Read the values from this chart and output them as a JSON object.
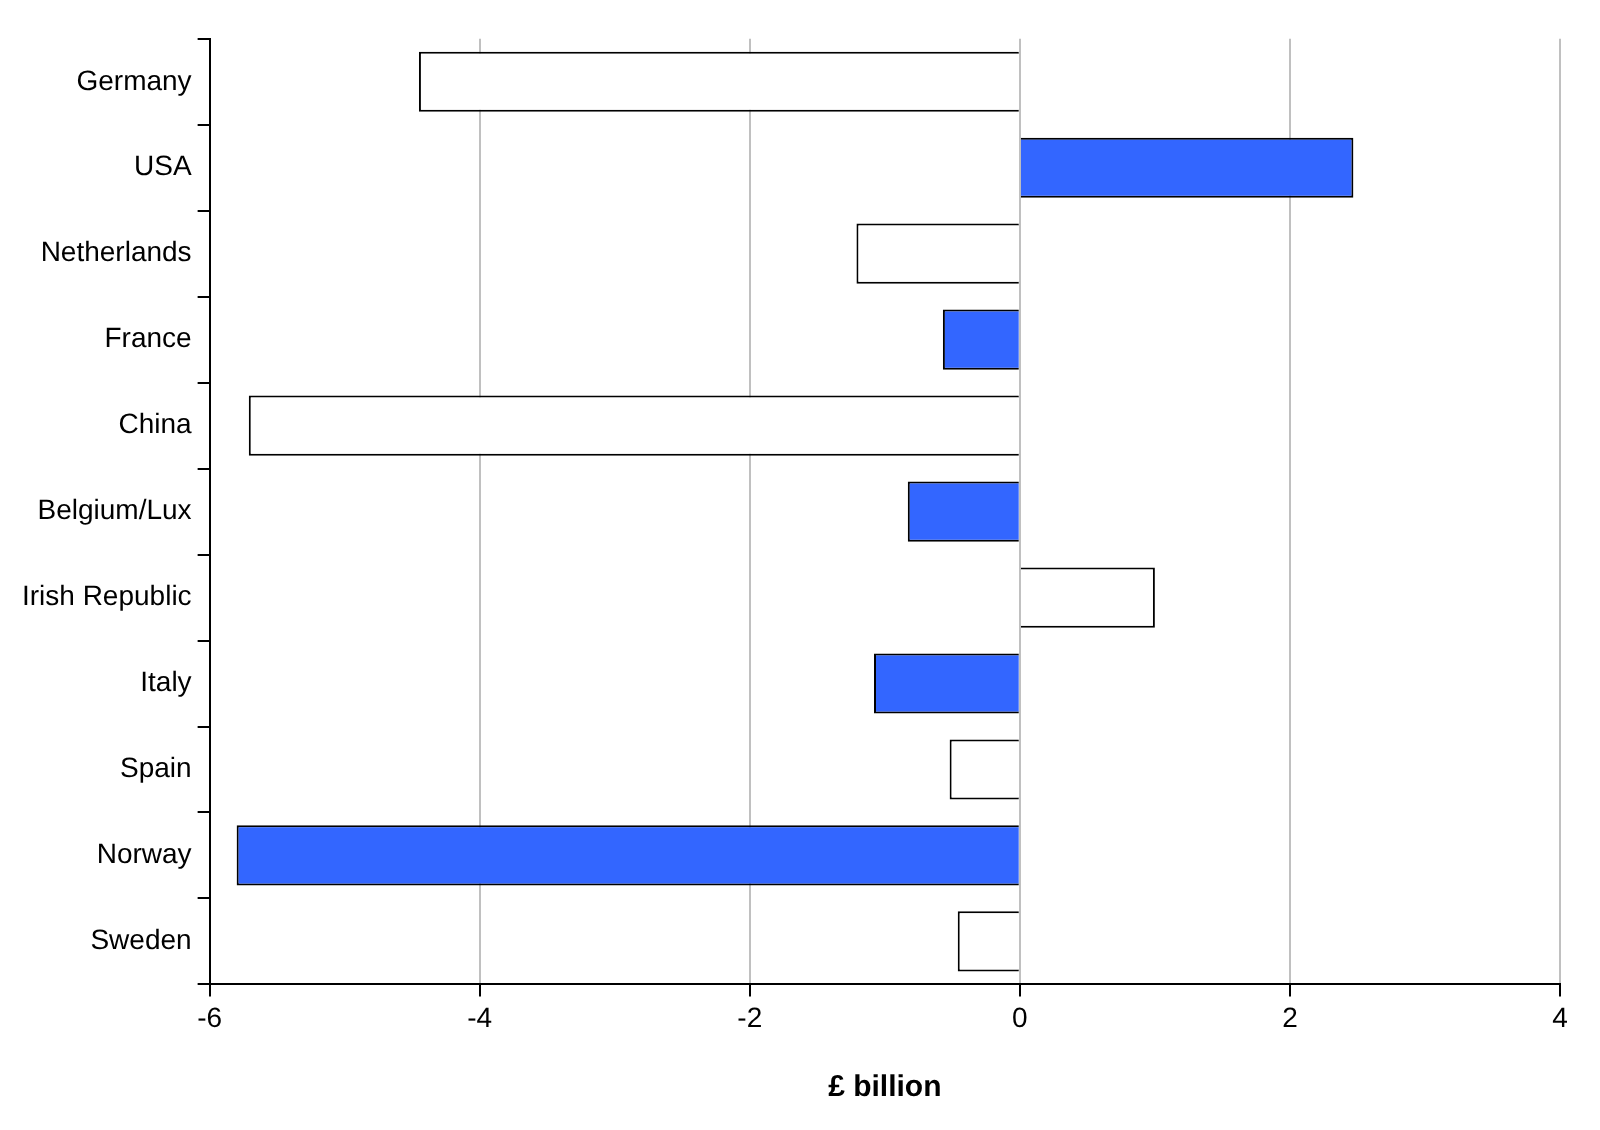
{
  "chart_data": {
    "type": "bar",
    "orientation": "horizontal",
    "xlabel": "£ billion",
    "categories": [
      "Germany",
      "USA",
      "Netherlands",
      "France",
      "China",
      "Belgium/Lux",
      "Irish Republic",
      "Italy",
      "Spain",
      "Norway",
      "Sweden"
    ],
    "values": [
      -4.45,
      2.47,
      -1.21,
      -0.57,
      -5.71,
      -0.83,
      1.0,
      -1.08,
      -0.52,
      -5.8,
      -0.46
    ],
    "colors": [
      "#ffffff",
      "#3366ff",
      "#ffffff",
      "#3366ff",
      "#ffffff",
      "#3366ff",
      "#ffffff",
      "#3366ff",
      "#ffffff",
      "#3366ff",
      "#ffffff"
    ],
    "xlim": [
      -6,
      4
    ],
    "xticks": [
      -6,
      -4,
      -2,
      0,
      2,
      4
    ],
    "grid": "x",
    "legend": false
  }
}
